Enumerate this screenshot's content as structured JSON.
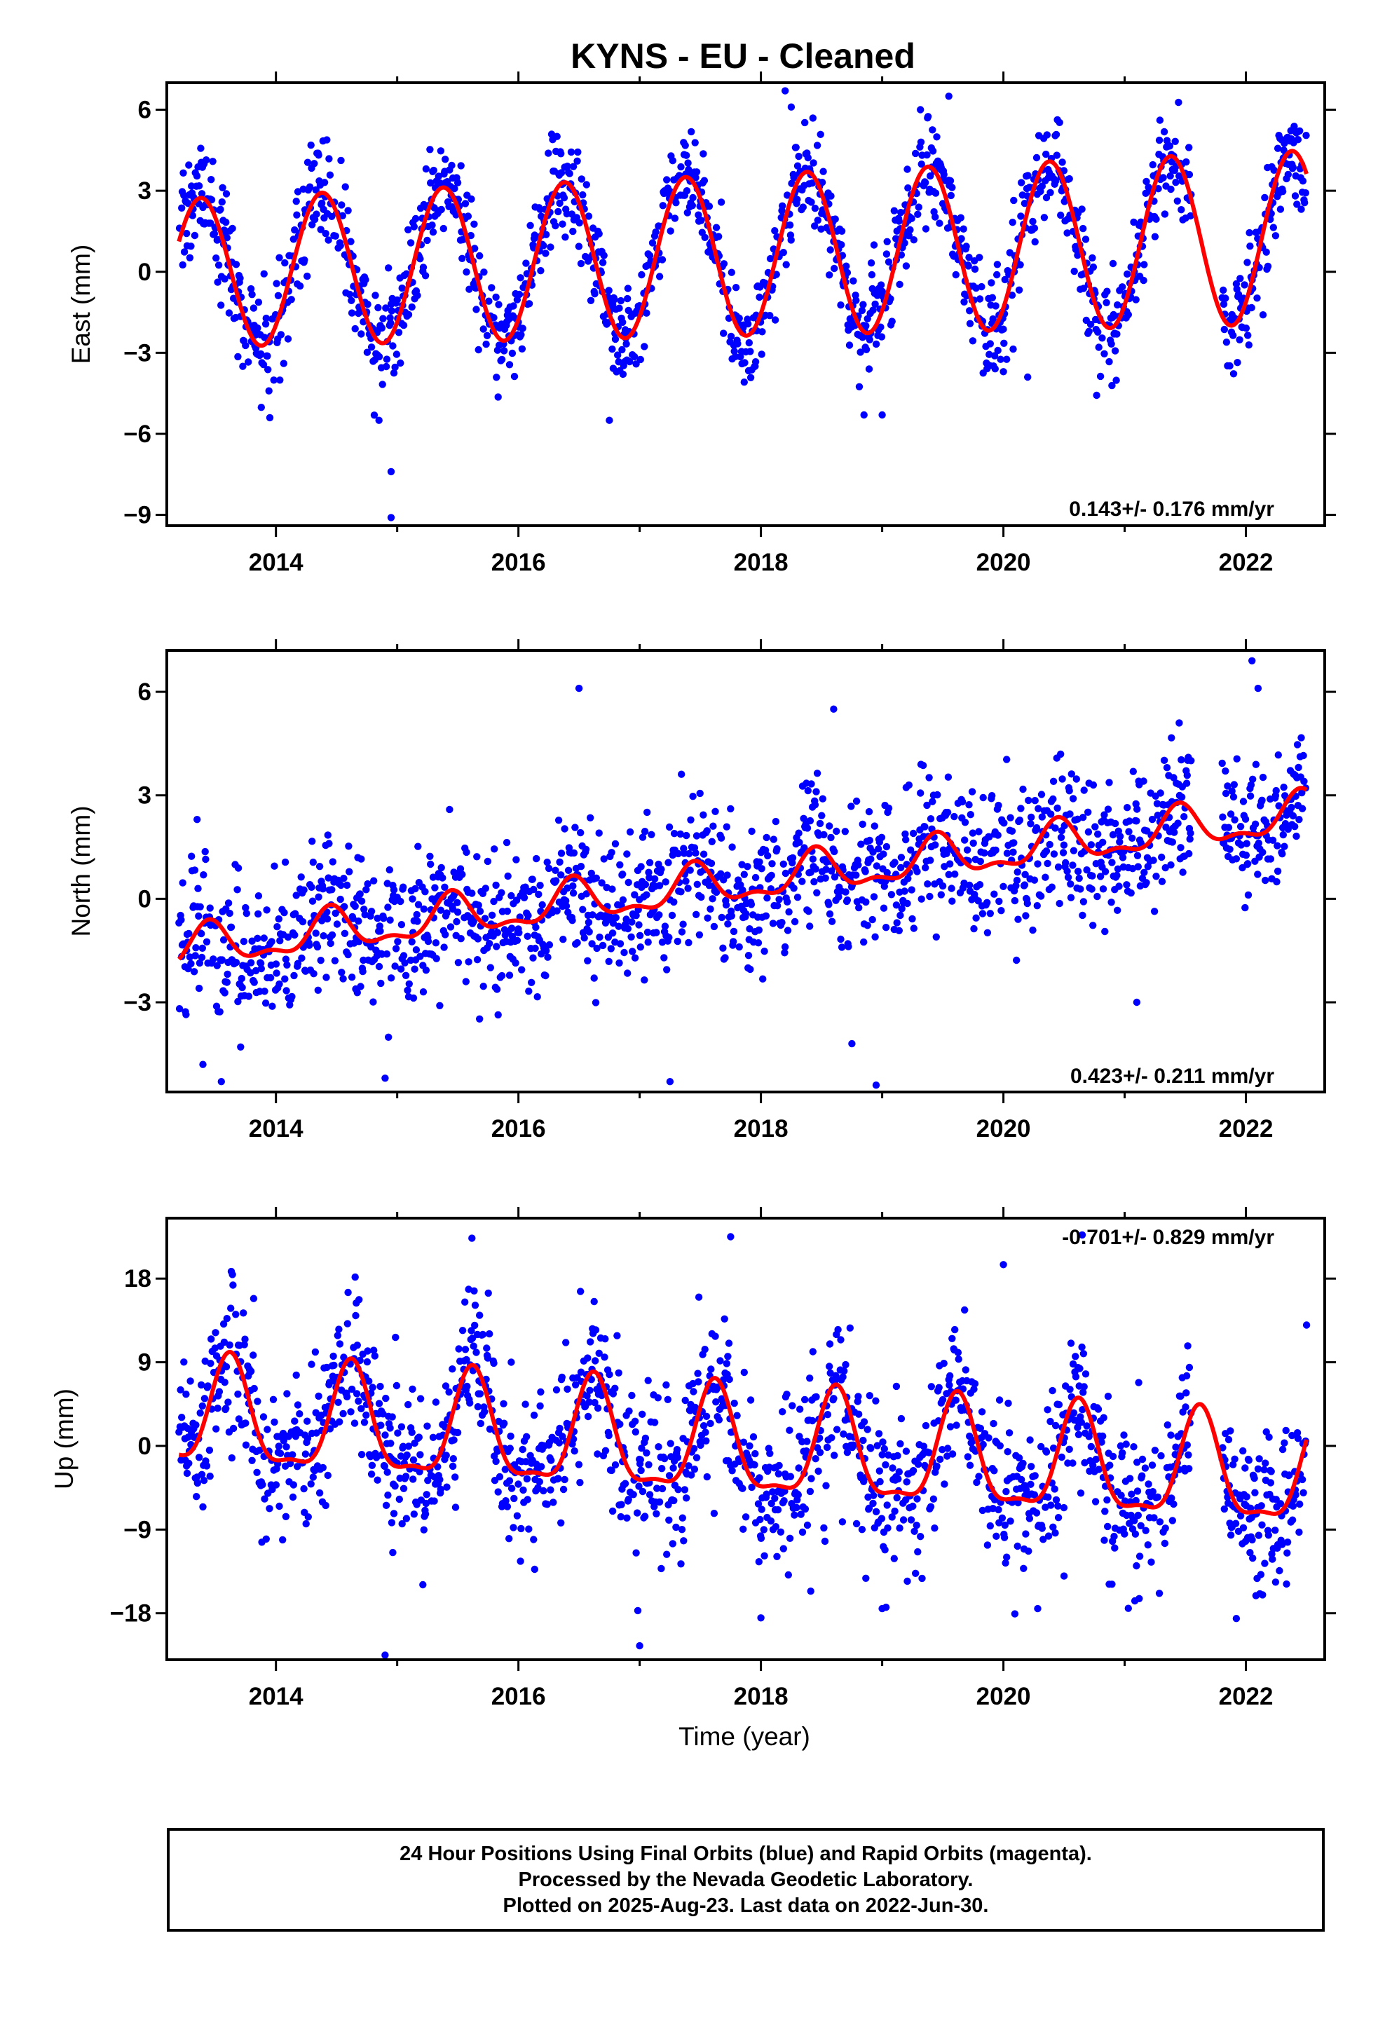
{
  "title": "KYNS  - EU - Cleaned",
  "xlabel": "Time (year)",
  "colors": {
    "points": "#0000ff",
    "fit": "#ff0000"
  },
  "chart_data": [
    {
      "type": "scatter",
      "name": "east",
      "ylabel": "East (mm)",
      "rate_label": "0.143+/- 0.176 mm/yr",
      "rate_position": "bottom-right",
      "xlim": [
        2013.1,
        2022.65
      ],
      "ylim": [
        -9.4,
        7.0
      ],
      "xticks": [
        2014,
        2016,
        2018,
        2020,
        2022
      ],
      "yticks": [
        -9,
        -6,
        -3,
        0,
        3,
        6
      ],
      "ytick_labels": [
        "−9",
        "−6",
        "−3",
        "0",
        "3",
        "6"
      ],
      "fit": {
        "offset": -0.05,
        "rate": 0.143,
        "annual_amp": 2.75,
        "amp_trend": 0.05,
        "phase_peak": 0.38,
        "x_end": 2022.5
      },
      "scatter": {
        "x_start": 2013.2,
        "x_end": 2022.5,
        "scatter_sd": 0.95,
        "gaps": [
          [
            2021.55,
            2021.8
          ]
        ],
        "outliers": [
          [
            2014.95,
            -9.1
          ],
          [
            2014.95,
            -7.4
          ],
          [
            2018.2,
            6.7
          ],
          [
            2018.25,
            6.1
          ],
          [
            2019.55,
            6.5
          ],
          [
            2019.0,
            -5.3
          ],
          [
            2018.85,
            -5.3
          ],
          [
            2016.75,
            -5.5
          ],
          [
            2014.85,
            -5.5
          ],
          [
            2013.95,
            -5.4
          ],
          [
            2020.2,
            -3.9
          ],
          [
            2020.0,
            -3.7
          ]
        ]
      }
    },
    {
      "type": "scatter",
      "name": "north",
      "ylabel": "North (mm)",
      "rate_label": "0.423+/- 0.211 mm/yr",
      "rate_position": "bottom-right",
      "xlim": [
        2013.1,
        2022.65
      ],
      "ylim": [
        -5.6,
        7.2
      ],
      "xticks": [
        2014,
        2016,
        2018,
        2020,
        2022
      ],
      "yticks": [
        -3,
        0,
        3,
        6
      ],
      "ytick_labels": [
        "−3",
        "0",
        "3",
        "6"
      ],
      "fit": {
        "offset": -1.5,
        "rate": 0.423,
        "annual_amp": 0.55,
        "semiannual_amp": 0.25,
        "phase_peak": 0.45,
        "x_end": 2022.5
      },
      "scatter": {
        "x_start": 2013.2,
        "x_end": 2022.5,
        "scatter_sd": 1.05,
        "gaps": [
          [
            2021.55,
            2021.8
          ]
        ],
        "outliers": [
          [
            2016.5,
            6.1
          ],
          [
            2022.05,
            6.9
          ],
          [
            2022.1,
            6.1
          ],
          [
            2018.6,
            5.5
          ],
          [
            2021.45,
            5.1
          ],
          [
            2013.35,
            2.3
          ],
          [
            2013.55,
            -5.3
          ],
          [
            2017.25,
            -5.3
          ],
          [
            2018.95,
            -5.4
          ],
          [
            2014.9,
            -5.2
          ],
          [
            2018.75,
            -4.2
          ],
          [
            2021.1,
            -3.0
          ]
        ]
      }
    },
    {
      "type": "scatter",
      "name": "up",
      "ylabel": "Up (mm)",
      "rate_label": "-0.701+/- 0.829 mm/yr",
      "rate_position": "top-right",
      "xlim": [
        2013.1,
        2022.65
      ],
      "ylim": [
        -23.0,
        24.5
      ],
      "xticks": [
        2014,
        2016,
        2018,
        2020,
        2022
      ],
      "yticks": [
        -18,
        -9,
        0,
        9,
        18
      ],
      "ytick_labels": [
        "−18",
        "−9",
        "0",
        "9",
        "18"
      ],
      "fit": {
        "offset": 3.0,
        "rate": -0.701,
        "annual_amp": 5.6,
        "semiannual_amp": 1.8,
        "phase_peak": 0.62,
        "x_end": 2022.5
      },
      "scatter": {
        "x_start": 2013.2,
        "x_end": 2022.5,
        "scatter_sd": 4.3,
        "gaps": [
          [
            2021.55,
            2021.8
          ]
        ],
        "outliers": [
          [
            2017.75,
            22.5
          ],
          [
            2020.65,
            22.7
          ],
          [
            2020.0,
            19.5
          ],
          [
            2014.9,
            -22.5
          ],
          [
            2017.0,
            -21.5
          ],
          [
            2022.5,
            13.0
          ],
          [
            2018.0,
            -18.5
          ],
          [
            2019.0,
            -17.5
          ],
          [
            2020.5,
            -14.0
          ]
        ]
      }
    }
  ],
  "footer": {
    "line1": "24 Hour Positions Using Final Orbits (blue) and Rapid Orbits (magenta).",
    "line2": "Processed by the Nevada Geodetic Laboratory.",
    "line3": "Plotted on 2025-Aug-23. Last data on 2022-Jun-30."
  }
}
